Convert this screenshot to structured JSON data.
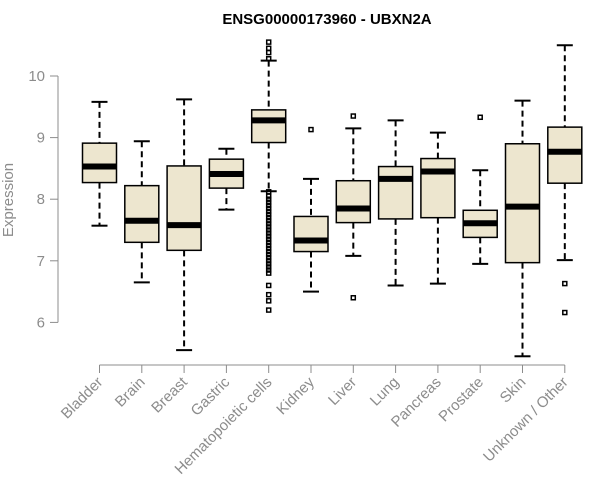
{
  "chart_data": {
    "type": "boxplot",
    "title": "ENSG00000173960 - UBXN2A",
    "xlabel": "",
    "ylabel": "Expression",
    "ylim": [
      5.4,
      10.6
    ],
    "yticks": [
      6,
      7,
      8,
      9,
      10
    ],
    "grid": false,
    "categories": [
      "Bladder",
      "Brain",
      "Breast",
      "Gastric",
      "Hematopoietic cells",
      "Kidney",
      "Liver",
      "Lung",
      "Pancreas",
      "Prostate",
      "Skin",
      "Unknown / Other"
    ],
    "boxes": [
      {
        "category": "Bladder",
        "whisker_low": 7.57,
        "q1": 8.27,
        "median": 8.53,
        "q3": 8.91,
        "whisker_high": 9.58,
        "outliers": []
      },
      {
        "category": "Brain",
        "whisker_low": 6.65,
        "q1": 7.3,
        "median": 7.65,
        "q3": 8.22,
        "whisker_high": 8.94,
        "outliers": []
      },
      {
        "category": "Breast",
        "whisker_low": 5.55,
        "q1": 7.17,
        "median": 7.58,
        "q3": 8.54,
        "whisker_high": 9.62,
        "outliers": []
      },
      {
        "category": "Gastric",
        "whisker_low": 7.83,
        "q1": 8.18,
        "median": 8.41,
        "q3": 8.65,
        "whisker_high": 8.82,
        "outliers": []
      },
      {
        "category": "Hematopoietic cells",
        "whisker_low": 8.13,
        "q1": 8.92,
        "median": 9.28,
        "q3": 9.45,
        "whisker_high": 10.25,
        "outliers": [
          10.55,
          10.45,
          10.38,
          10.28,
          8.12,
          8.05,
          8.0,
          7.95,
          7.9,
          7.85,
          7.8,
          7.75,
          7.7,
          7.65,
          7.6,
          7.55,
          7.5,
          7.45,
          7.4,
          7.35,
          7.3,
          7.25,
          7.2,
          7.15,
          7.1,
          7.05,
          7.0,
          6.95,
          6.9,
          6.85,
          6.8,
          6.6,
          6.45,
          6.35,
          6.2
        ]
      },
      {
        "category": "Kidney",
        "whisker_low": 6.5,
        "q1": 7.15,
        "median": 7.33,
        "q3": 7.72,
        "whisker_high": 8.33,
        "outliers": [
          9.13
        ]
      },
      {
        "category": "Liver",
        "whisker_low": 7.08,
        "q1": 7.62,
        "median": 7.85,
        "q3": 8.3,
        "whisker_high": 9.15,
        "outliers": [
          9.35,
          6.4
        ]
      },
      {
        "category": "Lung",
        "whisker_low": 6.6,
        "q1": 7.68,
        "median": 8.33,
        "q3": 8.53,
        "whisker_high": 9.28,
        "outliers": []
      },
      {
        "category": "Pancreas",
        "whisker_low": 6.63,
        "q1": 7.7,
        "median": 8.45,
        "q3": 8.66,
        "whisker_high": 9.08,
        "outliers": []
      },
      {
        "category": "Prostate",
        "whisker_low": 6.95,
        "q1": 7.38,
        "median": 7.61,
        "q3": 7.82,
        "whisker_high": 8.47,
        "outliers": [
          9.33
        ]
      },
      {
        "category": "Skin",
        "whisker_low": 5.45,
        "q1": 6.97,
        "median": 7.88,
        "q3": 8.9,
        "whisker_high": 9.6,
        "outliers": []
      },
      {
        "category": "Unknown / Other",
        "whisker_low": 7.01,
        "q1": 8.26,
        "median": 8.77,
        "q3": 9.17,
        "whisker_high": 10.5,
        "outliers": [
          6.63,
          6.16
        ]
      }
    ]
  }
}
